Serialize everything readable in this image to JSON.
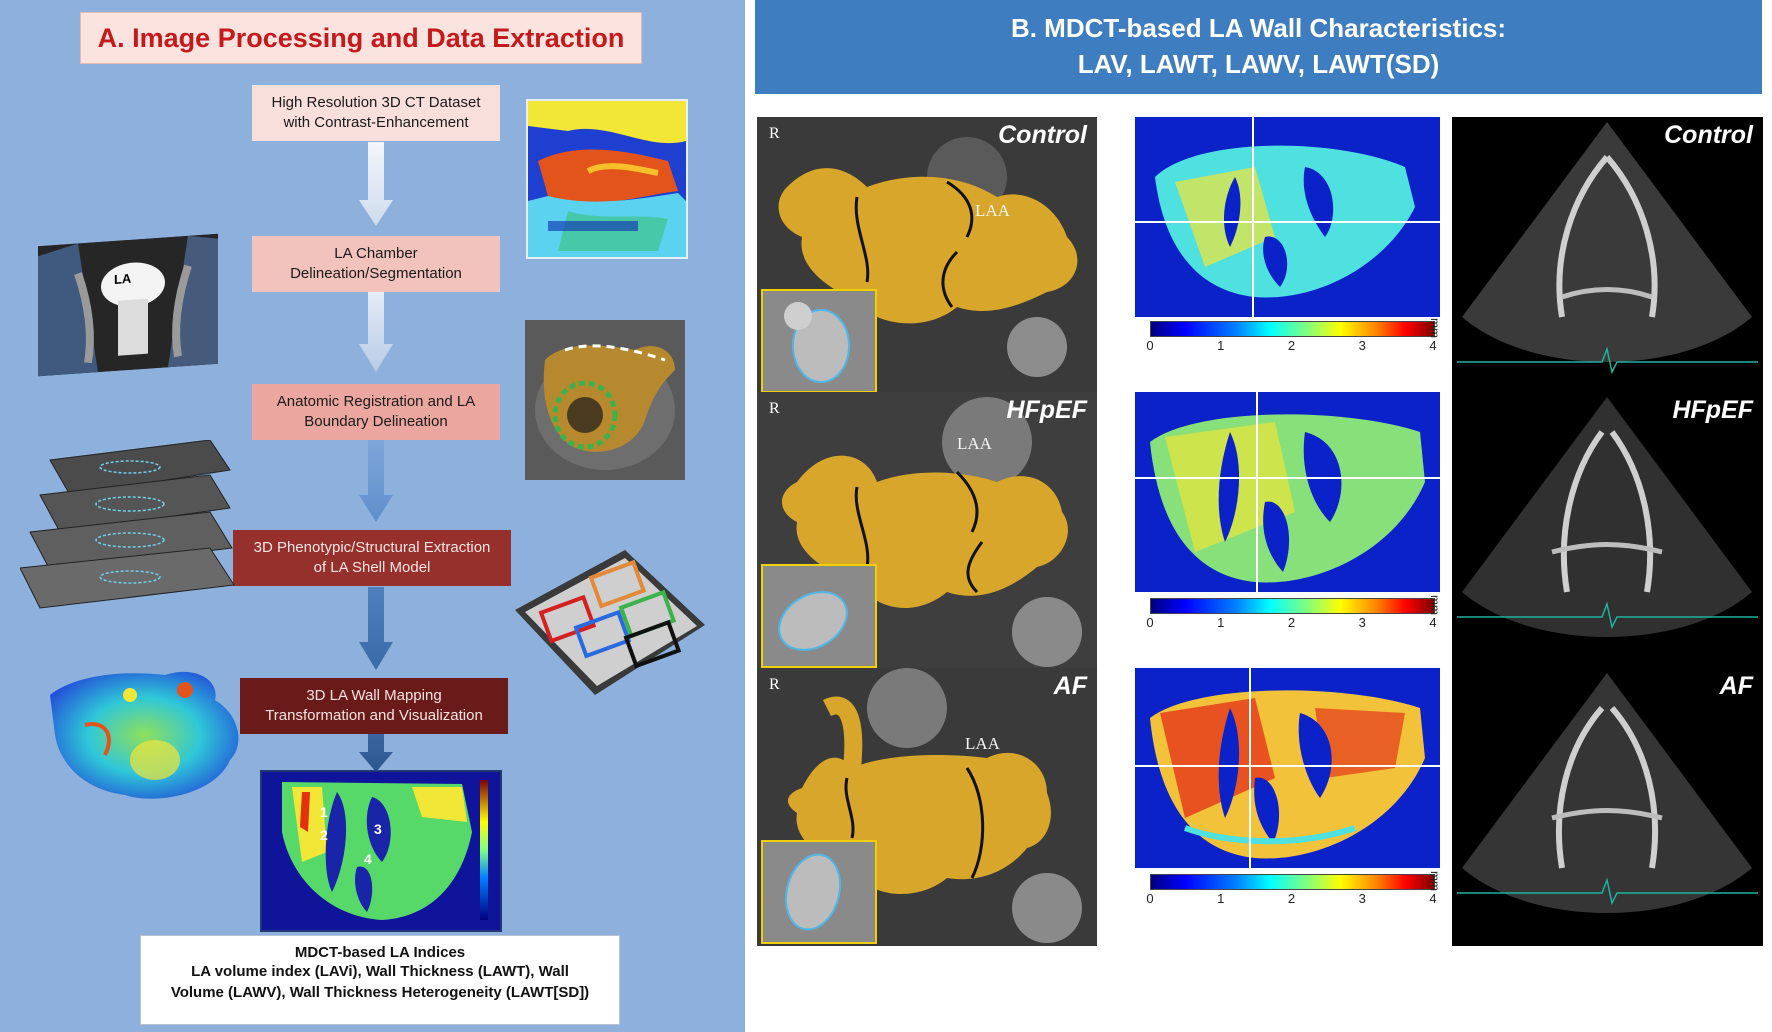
{
  "panel_a": {
    "title": "A. Image Processing and Data Extraction",
    "steps": [
      "High Resolution 3D CT Dataset\nwith Contrast-Enhancement",
      "LA Chamber\nDelineation/Segmentation",
      "Anatomic Registration and LA\nBoundary Delineation",
      "3D Phenotypic/Structural Extraction\nof LA Shell Model",
      "3D LA Wall Mapping\nTransformation and Visualization"
    ],
    "chest_label": "LA",
    "map_regions": [
      "1",
      "2",
      "3",
      "4"
    ],
    "indices": {
      "title": "MDCT-based LA Indices",
      "lines": [
        "LA volume index (LAVi), Wall Thickness (LAWT), Wall",
        "Volume (LAWV), Wall Thickness Heterogeneity (LAWT[SD])"
      ]
    }
  },
  "panel_b": {
    "title_line1": "B. MDCT-based LA Wall Characteristics:",
    "title_line2": "LAV, LAWT, LAWV, LAWT(SD)",
    "rows": [
      {
        "label": "Control",
        "orientation": "R",
        "appendage": "LAA"
      },
      {
        "label": "HFpEF",
        "orientation": "R",
        "appendage": "LAA"
      },
      {
        "label": "AF",
        "orientation": "R",
        "appendage": "LAA"
      }
    ],
    "colorbar": {
      "ticks": [
        "0",
        "1",
        "2",
        "3",
        "4"
      ],
      "unit": "mm",
      "min": 0,
      "max": 4
    }
  },
  "colors": {
    "panel_a_bg": "#8db0dc",
    "title_red": "#c5191b",
    "header_blue": "#3f7dc1",
    "arrow_light": "#e4ecf7",
    "arrow_dark": "#2f5d97",
    "map_blue": "#0a22c8",
    "anatomy_gold": "#d7a62a",
    "inset_border": "#f0d000"
  }
}
